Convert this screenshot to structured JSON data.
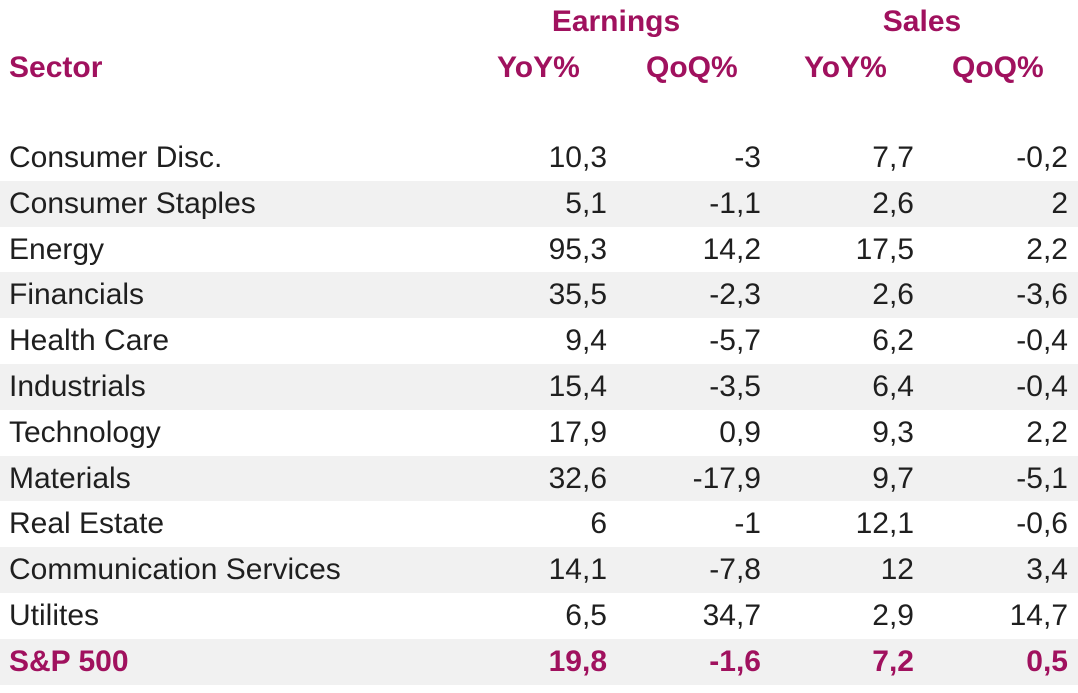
{
  "header": {
    "group_earnings": "Earnings",
    "group_sales": "Sales",
    "col_sector": "Sector",
    "col_earnings_yoy": "YoY%",
    "col_earnings_qoq": "QoQ%",
    "col_sales_yoy": "YoY%",
    "col_sales_qoq": "QoQ%"
  },
  "colors": {
    "accent": "#a0115e",
    "stripe": "#f1f1f1",
    "text": "#1f1f1f"
  },
  "rows": [
    {
      "sector": "Consumer Disc.",
      "earnings_yoy": "10,3",
      "earnings_qoq": "-3",
      "sales_yoy": "7,7",
      "sales_qoq": "-0,2"
    },
    {
      "sector": "Consumer Staples",
      "earnings_yoy": "5,1",
      "earnings_qoq": "-1,1",
      "sales_yoy": "2,6",
      "sales_qoq": "2"
    },
    {
      "sector": "Energy",
      "earnings_yoy": "95,3",
      "earnings_qoq": "14,2",
      "sales_yoy": "17,5",
      "sales_qoq": "2,2"
    },
    {
      "sector": "Financials",
      "earnings_yoy": "35,5",
      "earnings_qoq": "-2,3",
      "sales_yoy": "2,6",
      "sales_qoq": "-3,6"
    },
    {
      "sector": "Health Care",
      "earnings_yoy": "9,4",
      "earnings_qoq": "-5,7",
      "sales_yoy": "6,2",
      "sales_qoq": "-0,4"
    },
    {
      "sector": "Industrials",
      "earnings_yoy": "15,4",
      "earnings_qoq": "-3,5",
      "sales_yoy": "6,4",
      "sales_qoq": "-0,4"
    },
    {
      "sector": "Technology",
      "earnings_yoy": "17,9",
      "earnings_qoq": "0,9",
      "sales_yoy": "9,3",
      "sales_qoq": "2,2"
    },
    {
      "sector": "Materials",
      "earnings_yoy": "32,6",
      "earnings_qoq": "-17,9",
      "sales_yoy": "9,7",
      "sales_qoq": "-5,1"
    },
    {
      "sector": "Real Estate",
      "earnings_yoy": "6",
      "earnings_qoq": "-1",
      "sales_yoy": "12,1",
      "sales_qoq": "-0,6"
    },
    {
      "sector": "Communication Services",
      "earnings_yoy": "14,1",
      "earnings_qoq": "-7,8",
      "sales_yoy": "12",
      "sales_qoq": "3,4"
    },
    {
      "sector": "Utilites",
      "earnings_yoy": "6,5",
      "earnings_qoq": "34,7",
      "sales_yoy": "2,9",
      "sales_qoq": "14,7"
    },
    {
      "sector": "S&P 500",
      "earnings_yoy": "19,8",
      "earnings_qoq": "-1,6",
      "sales_yoy": "7,2",
      "sales_qoq": "0,5",
      "total": true
    }
  ],
  "chart_data": {
    "type": "table",
    "columns": [
      "Sector",
      "Earnings YoY%",
      "Earnings QoQ%",
      "Sales YoY%",
      "Sales QoQ%"
    ],
    "column_groups": [
      {
        "name": "Earnings",
        "columns": [
          "YoY%",
          "QoQ%"
        ]
      },
      {
        "name": "Sales",
        "columns": [
          "YoY%",
          "QoQ%"
        ]
      }
    ],
    "rows": [
      [
        "Consumer Disc.",
        10.3,
        -3,
        7.7,
        -0.2
      ],
      [
        "Consumer Staples",
        5.1,
        -1.1,
        2.6,
        2
      ],
      [
        "Energy",
        95.3,
        14.2,
        17.5,
        2.2
      ],
      [
        "Financials",
        35.5,
        -2.3,
        2.6,
        -3.6
      ],
      [
        "Health Care",
        9.4,
        -5.7,
        6.2,
        -0.4
      ],
      [
        "Industrials",
        15.4,
        -3.5,
        6.4,
        -0.4
      ],
      [
        "Technology",
        17.9,
        0.9,
        9.3,
        2.2
      ],
      [
        "Materials",
        32.6,
        -17.9,
        9.7,
        -5.1
      ],
      [
        "Real Estate",
        6,
        -1,
        12.1,
        -0.6
      ],
      [
        "Communication Services",
        14.1,
        -7.8,
        12,
        3.4
      ],
      [
        "Utilites",
        6.5,
        34.7,
        2.9,
        14.7
      ],
      [
        "S&P 500",
        19.8,
        -1.6,
        7.2,
        0.5
      ]
    ]
  }
}
